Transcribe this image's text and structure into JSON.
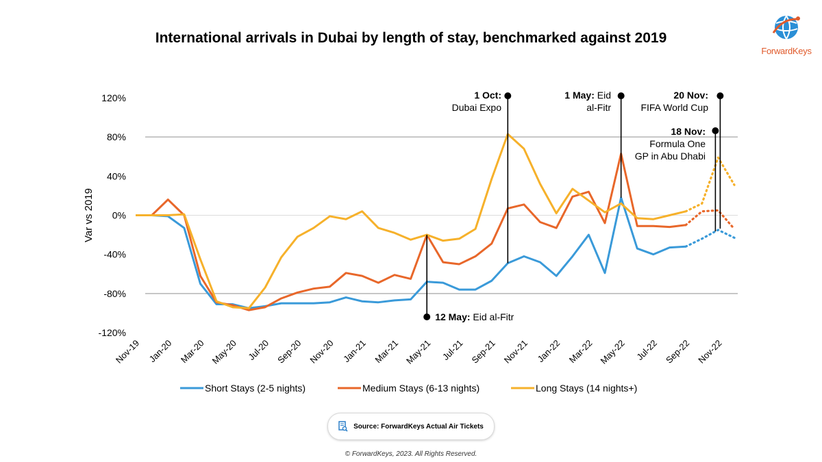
{
  "title": "International arrivals in Dubai by length of stay, benchmarked against 2019",
  "logo": {
    "text": "ForwardKeys",
    "icon": "globe-icon"
  },
  "source": {
    "label": "Source: ForwardKeys Actual Air Tickets",
    "icon": "document-search-icon"
  },
  "copyright": "© ForwardKeys, 2023. All Rights Reserved.",
  "chart_data": {
    "type": "line",
    "title": "International arrivals in Dubai by length of stay, benchmarked against 2019",
    "ylabel": "Var vs 2019",
    "xlabel": "",
    "ylim": [
      -120,
      120
    ],
    "yticks": [
      -120,
      -80,
      -40,
      0,
      40,
      80,
      120
    ],
    "ytick_labels": [
      "-120%",
      "-80%",
      "-40%",
      "0%",
      "40%",
      "80%",
      "120%"
    ],
    "x": [
      "Nov-19",
      "Dec-19",
      "Jan-20",
      "Feb-20",
      "Mar-20",
      "Apr-20",
      "May-20",
      "Jun-20",
      "Jul-20",
      "Aug-20",
      "Sep-20",
      "Oct-20",
      "Nov-20",
      "Dec-20",
      "Jan-21",
      "Feb-21",
      "Mar-21",
      "Apr-21",
      "May-21",
      "Jun-21",
      "Jul-21",
      "Aug-21",
      "Sep-21",
      "Oct-21",
      "Nov-21",
      "Dec-21",
      "Jan-22",
      "Feb-22",
      "Mar-22",
      "Apr-22",
      "May-22",
      "Jun-22",
      "Jul-22",
      "Aug-22",
      "Sep-22",
      "Oct-22",
      "Nov-22",
      "Dec-22"
    ],
    "xtick_labels": [
      "Nov-19",
      "Jan-20",
      "Mar-20",
      "May-20",
      "Jul-20",
      "Sep-20",
      "Nov-20",
      "Jan-21",
      "Mar-21",
      "May-21",
      "Jul-21",
      "Sep-21",
      "Nov-21",
      "Jan-22",
      "Mar-22",
      "May-22",
      "Jul-22",
      "Sep-22",
      "Nov-22"
    ],
    "grid": "reference lines at 80% and -80%",
    "legend": "bottom",
    "actual_until": "Sep-22",
    "forecast_style": "dotted after Sep-22",
    "series": [
      {
        "name": "Short Stays (2-5 nights)",
        "color": "#3a9ad9",
        "values": [
          0,
          0,
          -1,
          -13,
          -70,
          -91,
          -91,
          -95,
          -93,
          -90,
          -90,
          -90,
          -89,
          -84,
          -88,
          -89,
          -87,
          -86,
          -68,
          -69,
          -76,
          -76,
          -67,
          -49,
          -42,
          -48,
          -62,
          -42,
          -20,
          -59,
          18,
          -34,
          -40,
          -33,
          -32,
          -24,
          -15,
          -23
        ]
      },
      {
        "name": "Medium Stays (6-13 nights)",
        "color": "#e8672a",
        "values": [
          0,
          0,
          16,
          0,
          -62,
          -89,
          -92,
          -97,
          -94,
          -85,
          -79,
          -75,
          -73,
          -59,
          -62,
          -69,
          -61,
          -65,
          -20,
          -48,
          -50,
          -42,
          -29,
          7,
          11,
          -7,
          -13,
          19,
          24,
          -8,
          63,
          -11,
          -11,
          -12,
          -10,
          4,
          5,
          -14
        ]
      },
      {
        "name": "Long Stays (14 nights+)",
        "color": "#f6b12b",
        "values": [
          0,
          0,
          0,
          1,
          -45,
          -88,
          -94,
          -95,
          -74,
          -43,
          -22,
          -13,
          -1,
          -4,
          4,
          -13,
          -18,
          -25,
          -20,
          -26,
          -24,
          -14,
          37,
          83,
          68,
          32,
          2,
          27,
          15,
          3,
          12,
          -3,
          -4,
          0,
          4,
          12,
          59,
          31
        ]
      }
    ],
    "annotations": [
      {
        "x": "May-21",
        "y_anchor": -20,
        "label_bold": "12 May:",
        "label": "Eid al-Fitr"
      },
      {
        "x": "Oct-21",
        "y_anchor": -49,
        "label_bold": "1 Oct:",
        "label": "Dubai Expo"
      },
      {
        "x": "May-22",
        "y_anchor": 18,
        "label_bold": "1 May:",
        "label_line1": "Eid",
        "label_line2": "al-Fitr"
      },
      {
        "x": "Nov-22",
        "y_anchor": -15,
        "label_bold": "20 Nov:",
        "label": "FIFA World Cup"
      },
      {
        "x": "Nov-22",
        "y_anchor": -15,
        "label_bold": "18 Nov:",
        "label_line1": "Formula One",
        "label_line2": "GP in Abu Dhabi"
      }
    ]
  }
}
